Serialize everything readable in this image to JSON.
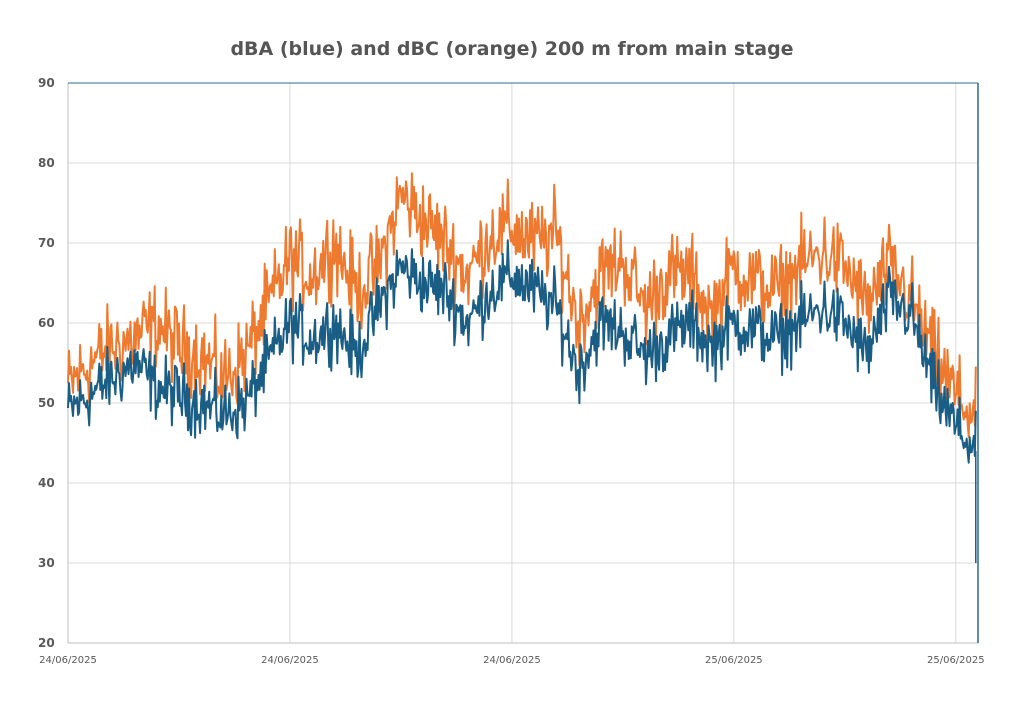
{
  "chart_data": {
    "type": "line",
    "title": "dBA (blue) and dBC (orange) 200 m from main stage",
    "xlabel": "",
    "ylabel": "",
    "ylim": [
      20,
      90
    ],
    "yticks": [
      20,
      30,
      40,
      50,
      60,
      70,
      80,
      90
    ],
    "xlim": [
      0,
      4.1
    ],
    "xticks": [
      {
        "value": 0,
        "label": "24/06/2025"
      },
      {
        "value": 1,
        "label": "24/06/2025"
      },
      {
        "value": 2,
        "label": "24/06/2025"
      },
      {
        "value": 3,
        "label": "25/06/2025"
      },
      {
        "value": 4,
        "label": "25/06/2025"
      }
    ],
    "grid": true,
    "legend": "none",
    "colors": {
      "dBA": "#1b5e85",
      "dBC": "#ee7a30",
      "grid": "#d9d9d9",
      "axis": "#bfbfbf",
      "frame": "#2c6b8c"
    },
    "series": [
      {
        "name": "dBA",
        "color": "#1b5e85",
        "x": [
          0,
          0.1,
          0.2,
          0.3,
          0.4,
          0.5,
          0.6,
          0.7,
          0.8,
          0.9,
          1.0,
          1.1,
          1.2,
          1.3,
          1.4,
          1.5,
          1.6,
          1.7,
          1.8,
          1.9,
          2.0,
          2.1,
          2.2,
          2.3,
          2.4,
          2.5,
          2.6,
          2.7,
          2.8,
          2.9,
          3.0,
          3.1,
          3.2,
          3.3,
          3.4,
          3.5,
          3.6,
          3.7,
          3.8,
          3.9,
          4.0,
          4.09
        ],
        "values": [
          49,
          51,
          53,
          55,
          52,
          51,
          50,
          48.5,
          50,
          55,
          60,
          58,
          60,
          56,
          62,
          67,
          65,
          64,
          60,
          64,
          66,
          64,
          62,
          54,
          60,
          59,
          56,
          58,
          60,
          57,
          60,
          59,
          58,
          60,
          62,
          60,
          56,
          63,
          61,
          52,
          47,
          44
        ]
      },
      {
        "name": "dBC",
        "color": "#ee7a30",
        "x": [
          0,
          0.1,
          0.2,
          0.3,
          0.4,
          0.5,
          0.6,
          0.7,
          0.8,
          0.9,
          1.0,
          1.1,
          1.2,
          1.3,
          1.4,
          1.5,
          1.6,
          1.7,
          1.8,
          1.9,
          2.0,
          2.1,
          2.2,
          2.3,
          2.4,
          2.5,
          2.6,
          2.7,
          2.8,
          2.9,
          3.0,
          3.1,
          3.2,
          3.3,
          3.4,
          3.5,
          3.6,
          3.7,
          3.8,
          3.9,
          4.0,
          4.09
        ],
        "values": [
          52,
          55,
          57,
          58,
          60,
          57,
          56,
          53,
          56,
          62,
          68,
          66,
          70,
          64,
          67,
          76,
          73,
          70,
          66,
          71,
          72,
          70,
          71,
          60,
          66,
          68,
          62,
          66,
          66,
          61,
          67,
          65,
          64,
          67,
          69,
          67,
          62,
          67,
          63,
          56,
          51,
          48
        ]
      }
    ]
  }
}
